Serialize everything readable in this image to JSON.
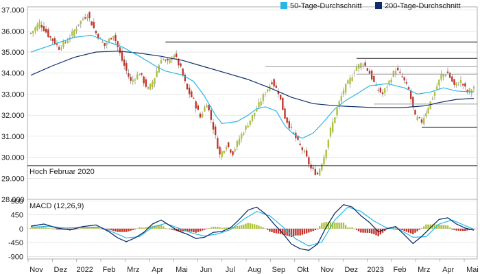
{
  "chart_data": [
    {
      "type": "candlestick",
      "panel": "price",
      "y_ticks": [
        28000,
        29000,
        30000,
        31000,
        32000,
        33000,
        34000,
        35000,
        36000,
        37000
      ],
      "y_tick_labels": [
        "28.000",
        "29.000",
        "30.000",
        "31.000",
        "32.000",
        "33.000",
        "34.000",
        "35.000",
        "36.000",
        "37.000"
      ],
      "ylim": [
        28000,
        37150
      ],
      "x_months": [
        "Nov",
        "Dez",
        "2022",
        "Feb",
        "Mrz",
        "Apr",
        "Mai",
        "Jun",
        "Jul",
        "Aug",
        "Sep",
        "Okt",
        "Nov",
        "Dez",
        "2023",
        "Feb",
        "Mrz",
        "Apr",
        "Mai"
      ],
      "legend": {
        "placement": "top-right",
        "items": [
          {
            "label": "50-Tage-Durchschnitt",
            "color": "#29b6e6"
          },
          {
            "label": "200-Tage-Durchschnitt",
            "color": "#0d2d6b"
          }
        ]
      },
      "colors": {
        "up": "#aec23a",
        "down": "#c2352a",
        "ma50": "#29b6e6",
        "ma200": "#0d2d6b",
        "level": "#222222",
        "level_light": "#9a9a9a"
      },
      "close_path": [
        [
          0,
          35900
        ],
        [
          4,
          36400
        ],
        [
          8,
          35800
        ],
        [
          13,
          35200
        ],
        [
          18,
          35700
        ],
        [
          22,
          36350
        ],
        [
          26,
          36800
        ],
        [
          30,
          35900
        ],
        [
          34,
          35300
        ],
        [
          38,
          35850
        ],
        [
          42,
          34600
        ],
        [
          46,
          33600
        ],
        [
          50,
          34000
        ],
        [
          54,
          33200
        ],
        [
          57,
          33800
        ],
        [
          60,
          34700
        ],
        [
          63,
          34500
        ],
        [
          66,
          34900
        ],
        [
          69,
          34200
        ],
        [
          72,
          33200
        ],
        [
          75,
          32700
        ],
        [
          78,
          31900
        ],
        [
          81,
          32600
        ],
        [
          84,
          31400
        ],
        [
          87,
          30100
        ],
        [
          90,
          30600
        ],
        [
          93,
          30200
        ],
        [
          96,
          30900
        ],
        [
          100,
          31600
        ],
        [
          104,
          32300
        ],
        [
          108,
          33100
        ],
        [
          111,
          33600
        ],
        [
          114,
          33100
        ],
        [
          117,
          31900
        ],
        [
          120,
          31300
        ],
        [
          123,
          30700
        ],
        [
          126,
          30200
        ],
        [
          129,
          29450
        ],
        [
          132,
          29200
        ],
        [
          135,
          30050
        ],
        [
          138,
          31300
        ],
        [
          141,
          32300
        ],
        [
          144,
          33200
        ],
        [
          147,
          33700
        ],
        [
          150,
          34300
        ],
        [
          153,
          34500
        ],
        [
          156,
          34000
        ],
        [
          159,
          33300
        ],
        [
          162,
          33000
        ],
        [
          165,
          33600
        ],
        [
          168,
          34200
        ],
        [
          171,
          33800
        ],
        [
          174,
          33200
        ],
        [
          177,
          31900
        ],
        [
          180,
          31700
        ],
        [
          183,
          32400
        ],
        [
          186,
          33100
        ],
        [
          189,
          33900
        ],
        [
          192,
          34000
        ],
        [
          195,
          33400
        ],
        [
          198,
          33600
        ],
        [
          201,
          33100
        ],
        [
          204,
          33300
        ]
      ],
      "ma50_path": [
        [
          0,
          35000
        ],
        [
          10,
          35350
        ],
        [
          20,
          35700
        ],
        [
          28,
          35800
        ],
        [
          35,
          35500
        ],
        [
          42,
          35250
        ],
        [
          50,
          34800
        ],
        [
          58,
          34300
        ],
        [
          62,
          34100
        ],
        [
          66,
          34000
        ],
        [
          70,
          33900
        ],
        [
          75,
          33600
        ],
        [
          80,
          32900
        ],
        [
          85,
          32000
        ],
        [
          88,
          31600
        ],
        [
          95,
          31700
        ],
        [
          100,
          32000
        ],
        [
          104,
          32300
        ],
        [
          108,
          32400
        ],
        [
          113,
          32200
        ],
        [
          117,
          31500
        ],
        [
          121,
          31100
        ],
        [
          125,
          30900
        ],
        [
          130,
          31150
        ],
        [
          135,
          31700
        ],
        [
          140,
          32300
        ],
        [
          145,
          32700
        ],
        [
          150,
          33000
        ],
        [
          156,
          33400
        ],
        [
          164,
          33500
        ],
        [
          172,
          33300
        ],
        [
          178,
          33000
        ],
        [
          184,
          33100
        ],
        [
          190,
          33300
        ],
        [
          196,
          33150
        ],
        [
          204,
          33100
        ]
      ],
      "ma200_path": [
        [
          0,
          33900
        ],
        [
          10,
          34350
        ],
        [
          20,
          34750
        ],
        [
          30,
          35000
        ],
        [
          40,
          35050
        ],
        [
          50,
          34950
        ],
        [
          60,
          34800
        ],
        [
          70,
          34600
        ],
        [
          80,
          34300
        ],
        [
          90,
          34000
        ],
        [
          100,
          33700
        ],
        [
          110,
          33300
        ],
        [
          120,
          32850
        ],
        [
          130,
          32550
        ],
        [
          140,
          32450
        ],
        [
          150,
          32400
        ],
        [
          160,
          32350
        ],
        [
          170,
          32350
        ],
        [
          176,
          32400
        ],
        [
          182,
          32450
        ],
        [
          188,
          32600
        ],
        [
          196,
          32750
        ],
        [
          204,
          32800
        ]
      ],
      "levels": [
        {
          "value": 35480,
          "from": 62,
          "to": 207,
          "style": "dark"
        },
        {
          "value": 34700,
          "from": 150,
          "to": 207,
          "style": "dark"
        },
        {
          "value": 34300,
          "from": 108,
          "to": 207,
          "style": "light"
        },
        {
          "value": 33950,
          "from": 150,
          "to": 207,
          "style": "light"
        },
        {
          "value": 32530,
          "from": 158,
          "to": 207,
          "style": "light"
        },
        {
          "value": 31420,
          "from": 180,
          "to": 207,
          "style": "dark"
        },
        {
          "value": 29600,
          "from": -2,
          "to": 207,
          "style": "dark",
          "label": "Hoch Februar 2020"
        }
      ]
    },
    {
      "type": "macd",
      "panel": "macd",
      "title": "MACD (12,26,9)",
      "y_ticks": [
        900,
        450,
        0,
        -450,
        -900
      ],
      "y_tick_labels": [
        "900",
        "450",
        "0",
        "-450",
        "-900"
      ],
      "ylim": [
        -980,
        950
      ],
      "macd_path": [
        [
          0,
          80
        ],
        [
          6,
          150
        ],
        [
          12,
          20
        ],
        [
          18,
          -40
        ],
        [
          24,
          70
        ],
        [
          30,
          120
        ],
        [
          36,
          -100
        ],
        [
          40,
          -300
        ],
        [
          44,
          -420
        ],
        [
          48,
          -300
        ],
        [
          52,
          -120
        ],
        [
          56,
          150
        ],
        [
          60,
          280
        ],
        [
          64,
          100
        ],
        [
          68,
          -80
        ],
        [
          72,
          -180
        ],
        [
          76,
          -320
        ],
        [
          80,
          -280
        ],
        [
          84,
          -120
        ],
        [
          88,
          -90
        ],
        [
          92,
          30
        ],
        [
          96,
          300
        ],
        [
          100,
          600
        ],
        [
          104,
          700
        ],
        [
          108,
          480
        ],
        [
          112,
          150
        ],
        [
          116,
          -150
        ],
        [
          120,
          -500
        ],
        [
          124,
          -650
        ],
        [
          128,
          -700
        ],
        [
          132,
          -500
        ],
        [
          136,
          50
        ],
        [
          140,
          500
        ],
        [
          144,
          780
        ],
        [
          148,
          700
        ],
        [
          152,
          420
        ],
        [
          156,
          200
        ],
        [
          160,
          -100
        ],
        [
          164,
          0
        ],
        [
          168,
          70
        ],
        [
          172,
          -200
        ],
        [
          176,
          -480
        ],
        [
          180,
          -250
        ],
        [
          184,
          30
        ],
        [
          188,
          300
        ],
        [
          192,
          350
        ],
        [
          196,
          150
        ],
        [
          200,
          20
        ],
        [
          204,
          -50
        ]
      ],
      "signal_path": [
        [
          0,
          50
        ],
        [
          8,
          80
        ],
        [
          16,
          20
        ],
        [
          24,
          40
        ],
        [
          32,
          50
        ],
        [
          38,
          -120
        ],
        [
          44,
          -300
        ],
        [
          50,
          -260
        ],
        [
          56,
          50
        ],
        [
          62,
          170
        ],
        [
          68,
          20
        ],
        [
          74,
          -140
        ],
        [
          80,
          -240
        ],
        [
          86,
          -170
        ],
        [
          92,
          -30
        ],
        [
          98,
          300
        ],
        [
          104,
          560
        ],
        [
          110,
          420
        ],
        [
          116,
          60
        ],
        [
          122,
          -330
        ],
        [
          128,
          -560
        ],
        [
          134,
          -430
        ],
        [
          140,
          280
        ],
        [
          146,
          700
        ],
        [
          152,
          560
        ],
        [
          158,
          250
        ],
        [
          164,
          20
        ],
        [
          170,
          -40
        ],
        [
          176,
          -280
        ],
        [
          182,
          -260
        ],
        [
          188,
          150
        ],
        [
          194,
          280
        ],
        [
          200,
          100
        ],
        [
          204,
          -20
        ]
      ],
      "colors": {
        "macd": "#0d2d6b",
        "signal": "#29b6e6",
        "hist_up": "#aec23a",
        "hist_down": "#c2352a"
      }
    }
  ]
}
